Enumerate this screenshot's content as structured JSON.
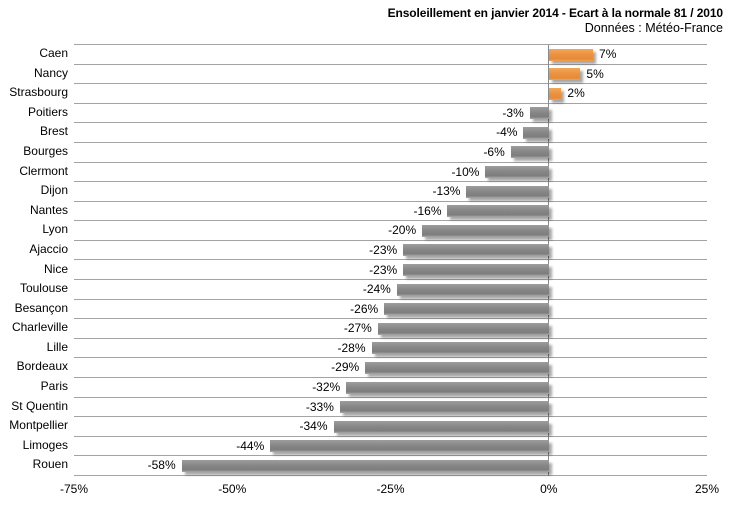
{
  "chart": {
    "title": "Ensoleillement en janvier 2014 - Ecart à la normale 81 / 2010",
    "subtitle": "Données : Météo-France"
  },
  "chart_data": {
    "type": "bar",
    "orientation": "horizontal",
    "title": "Ensoleillement en janvier 2014 - Ecart à la normale 81 / 2010",
    "subtitle": "Données : Météo-France",
    "xlabel": "",
    "ylabel": "",
    "categories": [
      "Caen",
      "Nancy",
      "Strasbourg",
      "Poitiers",
      "Brest",
      "Bourges",
      "Clermont",
      "Dijon",
      "Nantes",
      "Lyon",
      "Ajaccio",
      "Nice",
      "Toulouse",
      "Besançon",
      "Charleville",
      "Lille",
      "Bordeaux",
      "Paris",
      "St Quentin",
      "Montpellier",
      "Limoges",
      "Rouen"
    ],
    "values": [
      7,
      5,
      2,
      -3,
      -4,
      -6,
      -10,
      -13,
      -16,
      -20,
      -23,
      -23,
      -24,
      -26,
      -27,
      -28,
      -29,
      -32,
      -33,
      -34,
      -44,
      -58
    ],
    "value_labels": [
      "7%",
      "5%",
      "2%",
      "-3%",
      "-4%",
      "-6%",
      "-10%",
      "-13%",
      "-16%",
      "-20%",
      "-23%",
      "-23%",
      "-24%",
      "-26%",
      "-27%",
      "-28%",
      "-29%",
      "-32%",
      "-33%",
      "-34%",
      "-44%",
      "-58%"
    ],
    "xlim": [
      -75,
      25
    ],
    "x_tick_values": [
      -75,
      -50,
      -25,
      0,
      25
    ],
    "x_tick_labels": [
      "-75%",
      "-50%",
      "-25%",
      "0%",
      "25%"
    ],
    "grid": "category-separators-on",
    "legend": "none",
    "colors": {
      "positive_bar": "#EC9342",
      "negative_bar": "#878787",
      "gridline": "#A3A3A3",
      "zero_line": "#8A8A8A",
      "text": "#000000",
      "background": "#FFFFFF"
    }
  }
}
